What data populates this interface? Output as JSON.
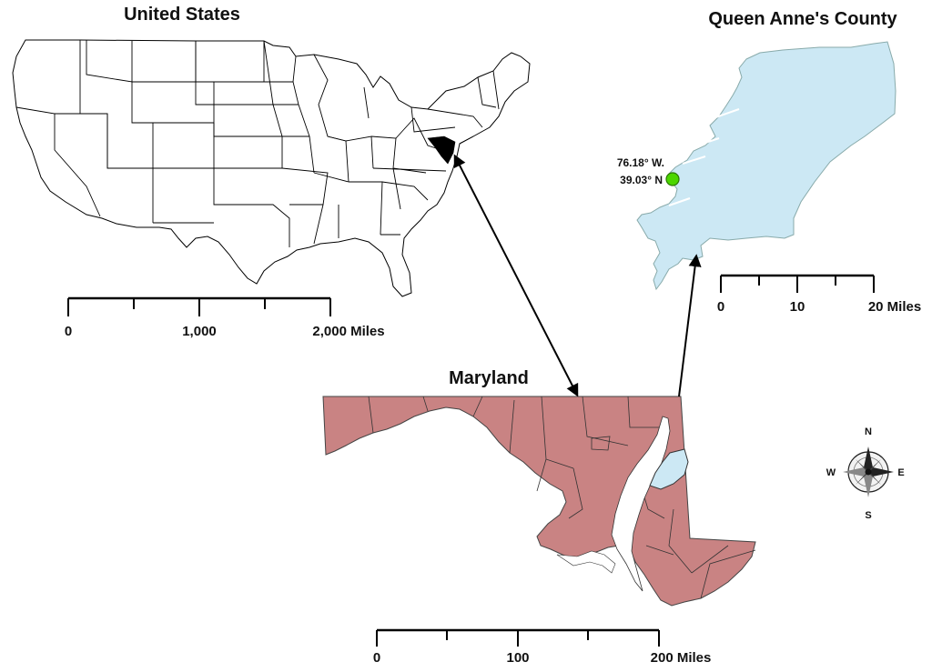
{
  "titles": {
    "us": "United States",
    "qa": "Queen Anne's County",
    "md": "Maryland"
  },
  "coordinates": {
    "lon": "76.18° W.",
    "lat": "39.03° N"
  },
  "scale_us": {
    "labels": [
      "0",
      "1,000",
      "2,000 Miles"
    ]
  },
  "scale_qa": {
    "labels": [
      "0",
      "10",
      "20 Miles"
    ]
  },
  "scale_md": {
    "labels": [
      "0",
      "100",
      "200 Miles"
    ]
  },
  "compass": {
    "n": "N",
    "s": "S",
    "e": "E",
    "w": "W"
  },
  "colors": {
    "us_fill": "#ffffff",
    "county_fill": "#cce8f4",
    "maryland_fill": "#c98383",
    "marker": "#4cd600"
  }
}
